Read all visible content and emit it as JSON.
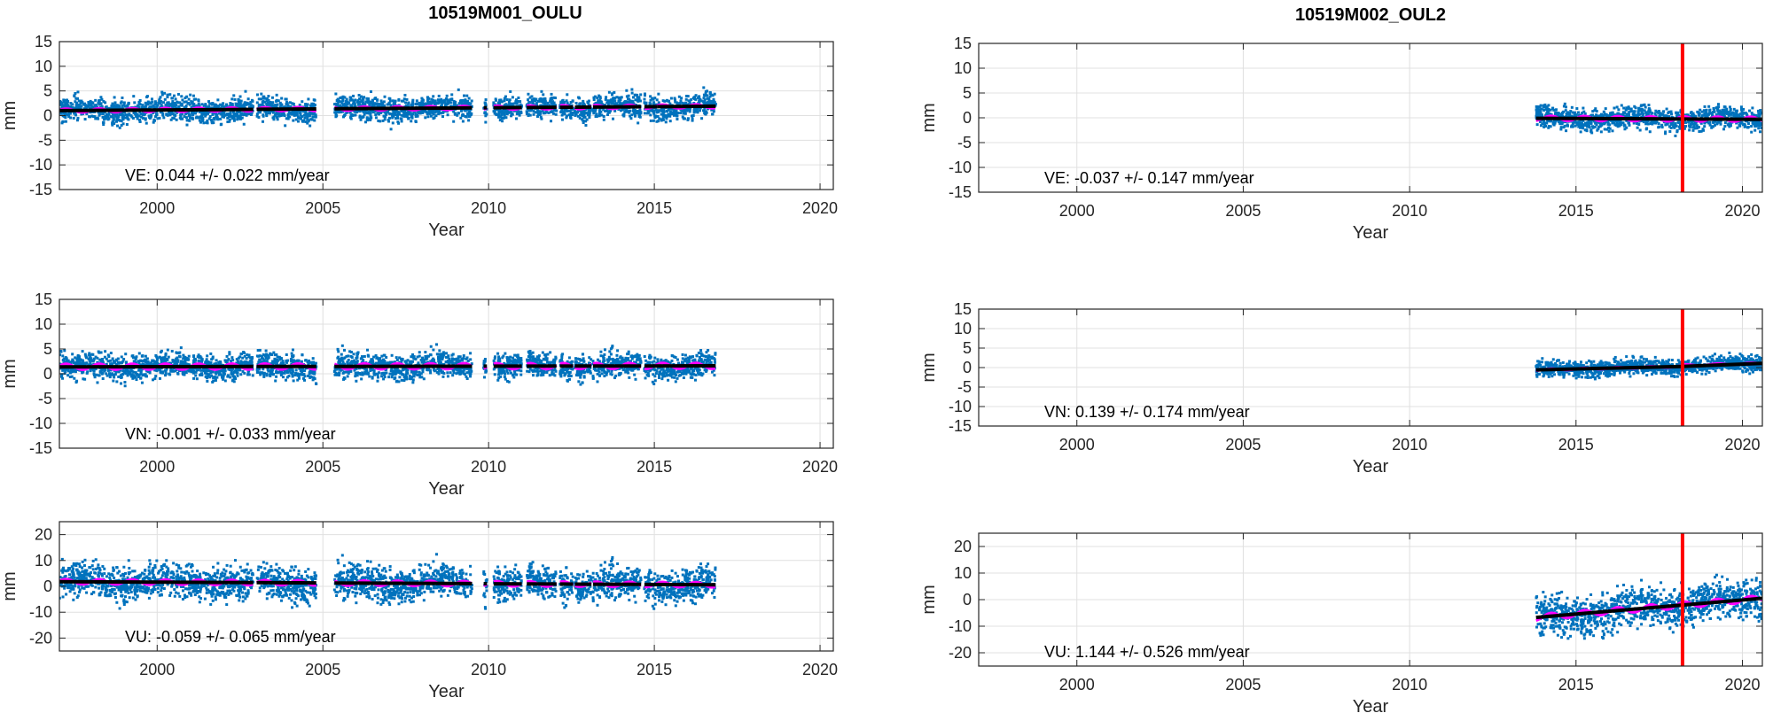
{
  "figure": {
    "columns": [
      {
        "title": "10519M001_OULU"
      },
      {
        "title": "10519M002_OUL2"
      }
    ]
  },
  "colors": {
    "points": "#0072bd",
    "seasonal_model": "#ff00ff",
    "trend": "#000000",
    "event_line": "#ff0000",
    "grid": "#e0e0e0",
    "axes": "#262626"
  },
  "chart_data": [
    {
      "id": "oulu-east",
      "type": "scatter",
      "station": "10519M001_OULU",
      "component": "VE",
      "title": "",
      "xlabel": "Year",
      "ylabel": "mm",
      "xlim": [
        1997.05,
        2020.4
      ],
      "ylim": [
        -15,
        15
      ],
      "xticks": [
        2000,
        2005,
        2010,
        2015,
        2020
      ],
      "yticks": [
        -15,
        -10,
        -5,
        0,
        5,
        10,
        15
      ],
      "grid": true,
      "annotation": "VE: 0.044 +/- 0.022 mm/year",
      "velocity": 0.044,
      "velocity_sigma": 0.022,
      "units": "mm/year",
      "segments": [
        [
          1997.05,
          2002.9
        ],
        [
          2003.0,
          2004.8
        ],
        [
          2005.35,
          2009.5
        ],
        [
          2009.85,
          2009.95
        ],
        [
          2010.15,
          2011.0
        ],
        [
          2011.15,
          2012.05
        ],
        [
          2012.15,
          2012.55
        ],
        [
          2012.6,
          2013.1
        ],
        [
          2013.15,
          2014.6
        ],
        [
          2014.7,
          2015.1
        ],
        [
          2015.1,
          2016.85
        ]
      ],
      "trend": [
        [
          1997.05,
          1.0
        ],
        [
          2016.85,
          1.9
        ]
      ],
      "scatter_spread": 1.3,
      "seasonal_amplitude": 0.4,
      "series": [
        {
          "name": "daily positions",
          "style": "points"
        },
        {
          "name": "seasonal model",
          "style": "line"
        },
        {
          "name": "linear trend",
          "style": "line"
        }
      ]
    },
    {
      "id": "oulu-north",
      "type": "scatter",
      "station": "10519M001_OULU",
      "component": "VN",
      "xlabel": "Year",
      "ylabel": "mm",
      "xlim": [
        1997.05,
        2020.4
      ],
      "ylim": [
        -15,
        15
      ],
      "xticks": [
        2000,
        2005,
        2010,
        2015,
        2020
      ],
      "yticks": [
        -15,
        -10,
        -5,
        0,
        5,
        10,
        15
      ],
      "grid": true,
      "annotation": "VN: -0.001 +/- 0.033 mm/year",
      "velocity": -0.001,
      "velocity_sigma": 0.033,
      "units": "mm/year",
      "segments": [
        [
          1997.05,
          2002.9
        ],
        [
          2003.0,
          2004.8
        ],
        [
          2005.35,
          2009.5
        ],
        [
          2009.85,
          2009.95
        ],
        [
          2010.15,
          2011.0
        ],
        [
          2011.15,
          2012.05
        ],
        [
          2012.15,
          2012.55
        ],
        [
          2012.6,
          2013.1
        ],
        [
          2013.15,
          2014.6
        ],
        [
          2014.7,
          2016.85
        ]
      ],
      "trend": [
        [
          1997.05,
          1.4
        ],
        [
          2016.85,
          1.6
        ]
      ],
      "scatter_spread": 1.4,
      "seasonal_amplitude": 0.6,
      "series": [
        {
          "name": "daily positions",
          "style": "points"
        },
        {
          "name": "seasonal model",
          "style": "line"
        },
        {
          "name": "linear trend",
          "style": "line"
        }
      ]
    },
    {
      "id": "oulu-up",
      "type": "scatter",
      "station": "10519M001_OULU",
      "component": "VU",
      "xlabel": "Year",
      "ylabel": "mm",
      "xlim": [
        1997.05,
        2020.4
      ],
      "ylim": [
        -25,
        25
      ],
      "xticks": [
        2000,
        2005,
        2010,
        2015,
        2020
      ],
      "yticks": [
        -20,
        -10,
        0,
        10,
        20
      ],
      "grid": true,
      "annotation": "VU: -0.059 +/- 0.065 mm/year",
      "velocity": -0.059,
      "velocity_sigma": 0.065,
      "units": "mm/year",
      "segments": [
        [
          1997.05,
          2002.9
        ],
        [
          2003.0,
          2004.8
        ],
        [
          2005.35,
          2009.5
        ],
        [
          2009.85,
          2009.95
        ],
        [
          2010.15,
          2011.0
        ],
        [
          2011.15,
          2012.05
        ],
        [
          2012.15,
          2012.55
        ],
        [
          2012.6,
          2013.1
        ],
        [
          2013.15,
          2014.6
        ],
        [
          2014.7,
          2016.85
        ]
      ],
      "trend": [
        [
          1997.05,
          1.8
        ],
        [
          2016.85,
          0.6
        ]
      ],
      "scatter_spread": 3.6,
      "seasonal_amplitude": 1.0,
      "series": [
        {
          "name": "daily positions",
          "style": "points"
        },
        {
          "name": "seasonal model",
          "style": "line"
        },
        {
          "name": "linear trend",
          "style": "line"
        }
      ]
    },
    {
      "id": "oul2-east",
      "type": "scatter",
      "station": "10519M002_OUL2",
      "component": "VE",
      "xlabel": "Year",
      "ylabel": "mm",
      "xlim": [
        1997.05,
        2020.6
      ],
      "ylim": [
        -15,
        15
      ],
      "xticks": [
        2000,
        2005,
        2010,
        2015,
        2020
      ],
      "yticks": [
        -15,
        -10,
        -5,
        0,
        5,
        10,
        15
      ],
      "grid": true,
      "annotation": "VE: -0.037 +/- 0.147 mm/year",
      "velocity": -0.037,
      "velocity_sigma": 0.147,
      "units": "mm/year",
      "segments": [
        [
          2013.8,
          2020.6
        ]
      ],
      "trend": [
        [
          2013.8,
          -0.1
        ],
        [
          2020.6,
          -0.3
        ]
      ],
      "event_line_x": 2018.2,
      "scatter_spread": 1.2,
      "seasonal_amplitude": 0.5,
      "series": [
        {
          "name": "daily positions",
          "style": "points"
        },
        {
          "name": "seasonal model",
          "style": "line"
        },
        {
          "name": "linear trend",
          "style": "line"
        },
        {
          "name": "equipment change",
          "style": "vline"
        }
      ]
    },
    {
      "id": "oul2-north",
      "type": "scatter",
      "station": "10519M002_OUL2",
      "component": "VN",
      "xlabel": "Year",
      "ylabel": "mm",
      "xlim": [
        1997.05,
        2020.6
      ],
      "ylim": [
        -15,
        15
      ],
      "xticks": [
        2000,
        2005,
        2010,
        2015,
        2020
      ],
      "yticks": [
        -15,
        -10,
        -5,
        0,
        5,
        10,
        15
      ],
      "grid": true,
      "annotation": "VN: 0.139 +/- 0.174 mm/year",
      "velocity": 0.139,
      "velocity_sigma": 0.174,
      "units": "mm/year",
      "segments": [
        [
          2013.8,
          2020.6
        ]
      ],
      "trend": [
        [
          2013.8,
          -0.6
        ],
        [
          2018.2,
          0.3
        ],
        [
          2018.2,
          0.6
        ],
        [
          2020.6,
          1.1
        ]
      ],
      "event_line_x": 2018.2,
      "scatter_spread": 1.1,
      "seasonal_amplitude": 0.2,
      "series": [
        {
          "name": "daily positions",
          "style": "points"
        },
        {
          "name": "seasonal model",
          "style": "line"
        },
        {
          "name": "linear trend",
          "style": "line"
        },
        {
          "name": "equipment change",
          "style": "vline"
        }
      ]
    },
    {
      "id": "oul2-up",
      "type": "scatter",
      "station": "10519M002_OUL2",
      "component": "VU",
      "xlabel": "Year",
      "ylabel": "mm",
      "xlim": [
        1997.05,
        2020.6
      ],
      "ylim": [
        -25,
        25
      ],
      "xticks": [
        2000,
        2005,
        2010,
        2015,
        2020
      ],
      "yticks": [
        -20,
        -10,
        0,
        10,
        20
      ],
      "grid": true,
      "annotation": "VU: 1.144 +/- 0.526 mm/year",
      "velocity": 1.144,
      "velocity_sigma": 0.526,
      "units": "mm/year",
      "segments": [
        [
          2013.8,
          2020.6
        ]
      ],
      "trend": [
        [
          2013.8,
          -6.7
        ],
        [
          2020.6,
          0.5
        ]
      ],
      "event_line_x": 2018.2,
      "scatter_spread": 4.0,
      "seasonal_amplitude": 1.2,
      "series": [
        {
          "name": "daily positions",
          "style": "points"
        },
        {
          "name": "seasonal model",
          "style": "line"
        },
        {
          "name": "linear trend",
          "style": "line"
        },
        {
          "name": "equipment change",
          "style": "vline"
        }
      ]
    }
  ]
}
